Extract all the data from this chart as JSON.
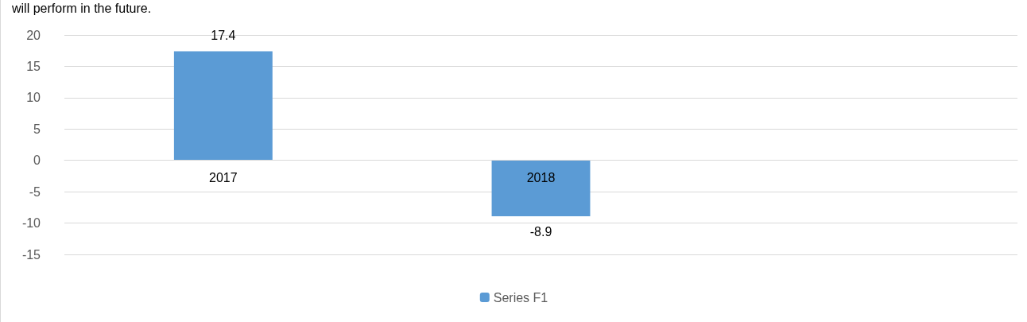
{
  "chart_data": {
    "type": "bar",
    "categories": [
      "2017",
      "2018",
      null
    ],
    "series": [
      {
        "name": "Series F1",
        "color": "#5b9bd5",
        "values": [
          17.4,
          -8.9,
          null
        ]
      }
    ],
    "ylim": [
      -15,
      20
    ],
    "yticks": [
      -15,
      -10,
      -5,
      0,
      5,
      10,
      15,
      20
    ],
    "grid": "y",
    "legend": "bottom",
    "data_labels": true,
    "annotations": [
      "will perform in the future."
    ]
  }
}
